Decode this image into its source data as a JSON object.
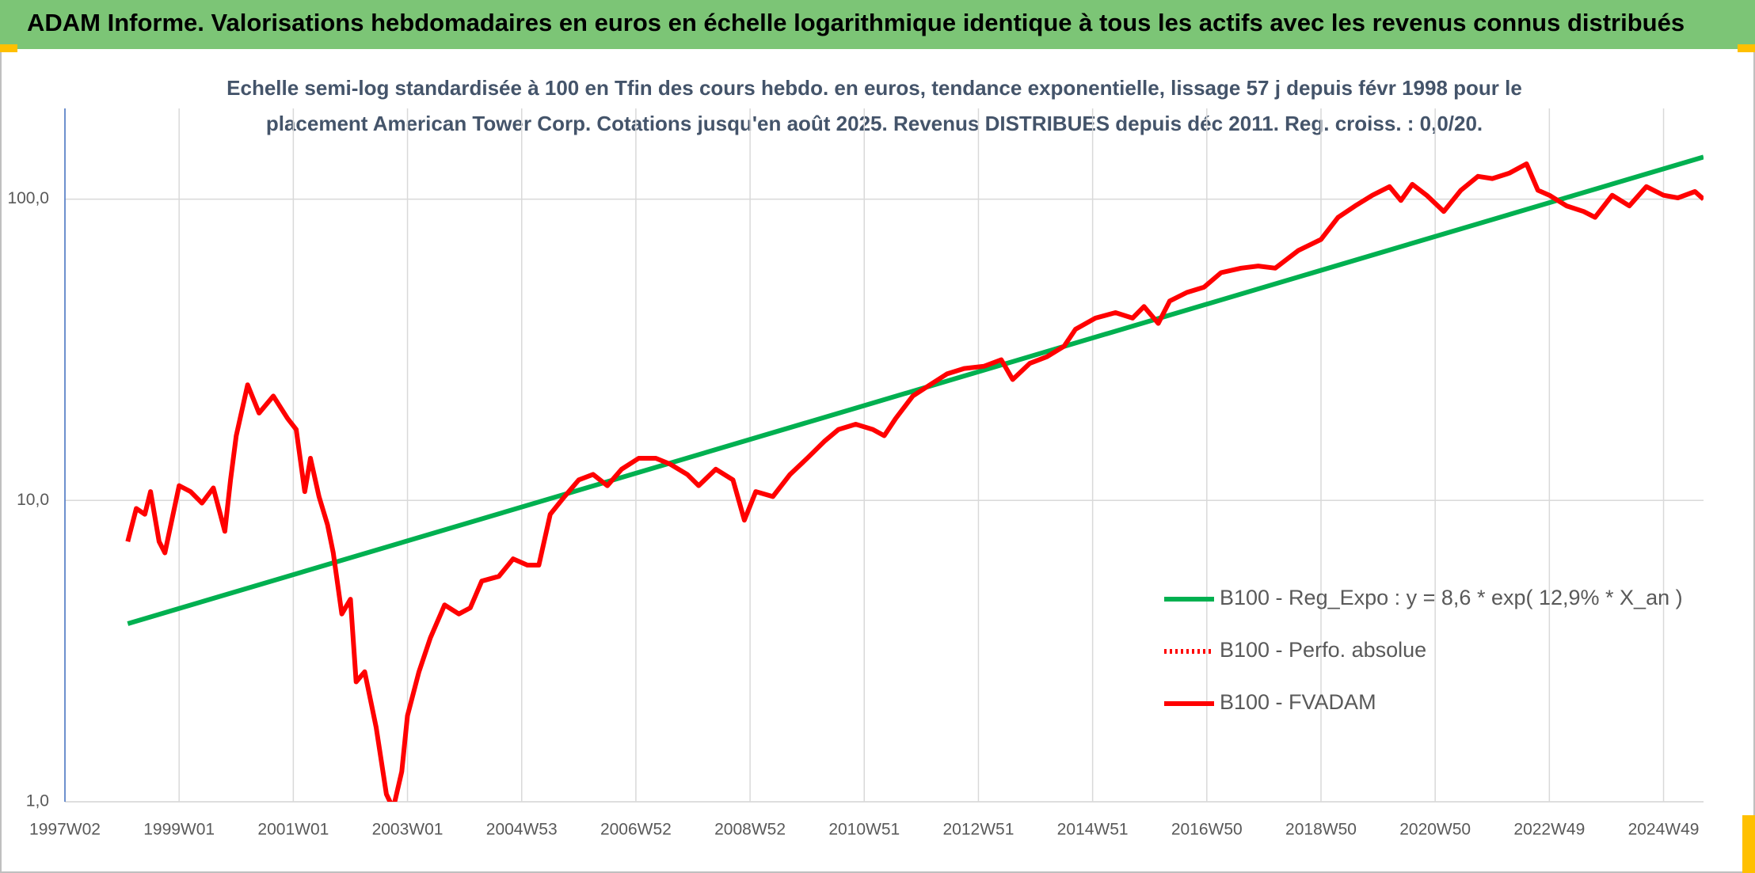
{
  "chart_data": {
    "type": "line",
    "title": "ADAM Informe. Valorisations hebdomadaires en euros en échelle logarithmique identique à tous les actifs avec les revenus connus distribués",
    "subtitle": [
      "Echelle semi-log standardisée à 100 en Tfin des cours hebdo. en euros, tendance exponentielle, lissage 57 j depuis févr 1998 pour le",
      "placement American Tower Corp. Cotations jusqu'en août 2025. Revenus DISTRIBUES depuis déc 2011. Reg. croiss. : 0,0/20."
    ],
    "log_y": true,
    "grid": true,
    "legend": "lower-right",
    "xlim": [
      1997,
      2025.7
    ],
    "xticks": [
      {
        "value": 1997,
        "label": "1997W02"
      },
      {
        "value": 1999,
        "label": "1999W01"
      },
      {
        "value": 2001,
        "label": "2001W01"
      },
      {
        "value": 2003,
        "label": "2003W01"
      },
      {
        "value": 2005,
        "label": "2004W53"
      },
      {
        "value": 2007,
        "label": "2006W52"
      },
      {
        "value": 2009,
        "label": "2008W52"
      },
      {
        "value": 2011,
        "label": "2010W51"
      },
      {
        "value": 2013,
        "label": "2012W51"
      },
      {
        "value": 2015,
        "label": "2014W51"
      },
      {
        "value": 2017,
        "label": "2016W50"
      },
      {
        "value": 2019,
        "label": "2018W50"
      },
      {
        "value": 2021,
        "label": "2020W50"
      },
      {
        "value": 2023,
        "label": "2022W49"
      },
      {
        "value": 2025,
        "label": "2024W49"
      }
    ],
    "ylim": [
      1,
      200
    ],
    "yticks": [
      {
        "value": 1,
        "label": "1,0"
      },
      {
        "value": 10,
        "label": "10,0"
      },
      {
        "value": 100,
        "label": "100,0"
      }
    ],
    "series": [
      {
        "name": "B100 - Reg_Expo : y = 8,6 * exp( 12,9% *  X_an )",
        "color": "#00b050",
        "style": "solid",
        "x": [
          1998.1,
          2025.7
        ],
        "values": [
          3.9,
          138
        ]
      },
      {
        "name": "B100 - Perfo. absolue",
        "color": "#ff0000",
        "style": "dotted"
      },
      {
        "name": "B100 - FVADAM",
        "color": "#ff0000",
        "style": "solid",
        "x": [
          1998.1,
          1998.25,
          1998.4,
          1998.5,
          1998.65,
          1998.75,
          1999.0,
          1999.2,
          1999.4,
          1999.6,
          1999.8,
          1999.9,
          2000.0,
          2000.2,
          2000.4,
          2000.65,
          2000.9,
          2001.05,
          2001.2,
          2001.3,
          2001.45,
          2001.6,
          2001.7,
          2001.85,
          2002.0,
          2002.1,
          2002.25,
          2002.45,
          2002.63,
          2002.75,
          2002.9,
          2003.0,
          2003.2,
          2003.4,
          2003.65,
          2003.9,
          2004.1,
          2004.3,
          2004.6,
          2004.85,
          2005.1,
          2005.3,
          2005.5,
          2005.75,
          2006.0,
          2006.25,
          2006.5,
          2006.75,
          2007.05,
          2007.35,
          2007.6,
          2007.9,
          2008.1,
          2008.4,
          2008.7,
          2008.9,
          2009.1,
          2009.4,
          2009.7,
          2010.0,
          2010.3,
          2010.55,
          2010.85,
          2011.15,
          2011.35,
          2011.55,
          2011.85,
          2012.15,
          2012.45,
          2012.75,
          2013.1,
          2013.4,
          2013.6,
          2013.9,
          2014.2,
          2014.5,
          2014.7,
          2015.05,
          2015.4,
          2015.7,
          2015.9,
          2016.15,
          2016.35,
          2016.65,
          2016.95,
          2017.25,
          2017.6,
          2017.9,
          2018.2,
          2018.6,
          2019.0,
          2019.3,
          2019.6,
          2019.9,
          2020.2,
          2020.4,
          2020.6,
          2020.85,
          2021.15,
          2021.45,
          2021.75,
          2022.0,
          2022.3,
          2022.6,
          2022.8,
          2023.0,
          2023.3,
          2023.6,
          2023.8,
          2024.1,
          2024.4,
          2024.7,
          2025.0,
          2025.25,
          2025.55,
          2025.7
        ],
        "values": [
          7.3,
          9.4,
          9.0,
          10.7,
          7.3,
          6.7,
          11.2,
          10.7,
          9.8,
          11,
          7.9,
          11.7,
          16.4,
          24.2,
          19.5,
          22.2,
          18.7,
          17.2,
          10.7,
          13.8,
          10.3,
          8.3,
          6.7,
          4.2,
          4.7,
          2.5,
          2.7,
          1.77,
          1.06,
          0.95,
          1.26,
          1.93,
          2.7,
          3.5,
          4.5,
          4.2,
          4.4,
          5.4,
          5.6,
          6.4,
          6.1,
          6.1,
          9.0,
          10.3,
          11.7,
          12.2,
          11.2,
          12.7,
          13.8,
          13.8,
          13.2,
          12.2,
          11.2,
          12.7,
          11.7,
          8.6,
          10.7,
          10.3,
          12.2,
          13.8,
          15.7,
          17.2,
          17.9,
          17.2,
          16.4,
          18.7,
          22.2,
          24.2,
          26.3,
          27.4,
          27.9,
          29.3,
          25.2,
          28.5,
          30,
          32.5,
          37,
          40.3,
          42,
          40.3,
          44,
          38.7,
          45.9,
          49,
          51,
          57,
          59,
          60,
          59,
          67.5,
          73.5,
          87,
          95,
          103,
          110,
          99,
          112,
          103,
          91,
          107,
          119,
          117,
          122,
          131,
          107,
          103,
          95,
          91,
          87,
          103,
          95,
          110,
          103,
          101,
          106,
          100
        ]
      }
    ]
  }
}
